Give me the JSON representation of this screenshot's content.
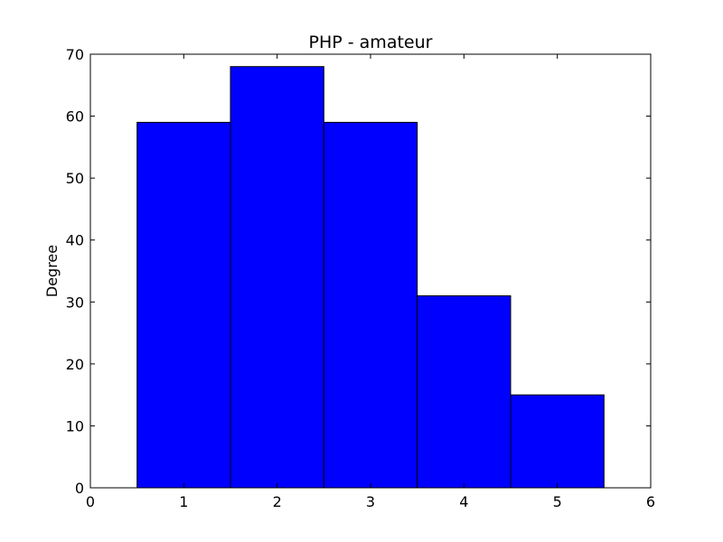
{
  "chart_data": {
    "type": "bar",
    "title": "PHP - amateur",
    "xlabel": "",
    "ylabel": "Degree",
    "x": [
      1,
      2,
      3,
      4,
      5
    ],
    "values": [
      59,
      68,
      59,
      31,
      15
    ],
    "bar_width": 1,
    "xlim": [
      0,
      6
    ],
    "ylim": [
      0,
      70
    ],
    "xticks": [
      0,
      1,
      2,
      3,
      4,
      5,
      6
    ],
    "yticks": [
      0,
      10,
      20,
      30,
      40,
      50,
      60,
      70
    ],
    "bar_color": "#0000ff",
    "edge_color": "#000000",
    "grid": false,
    "legend": "none"
  }
}
